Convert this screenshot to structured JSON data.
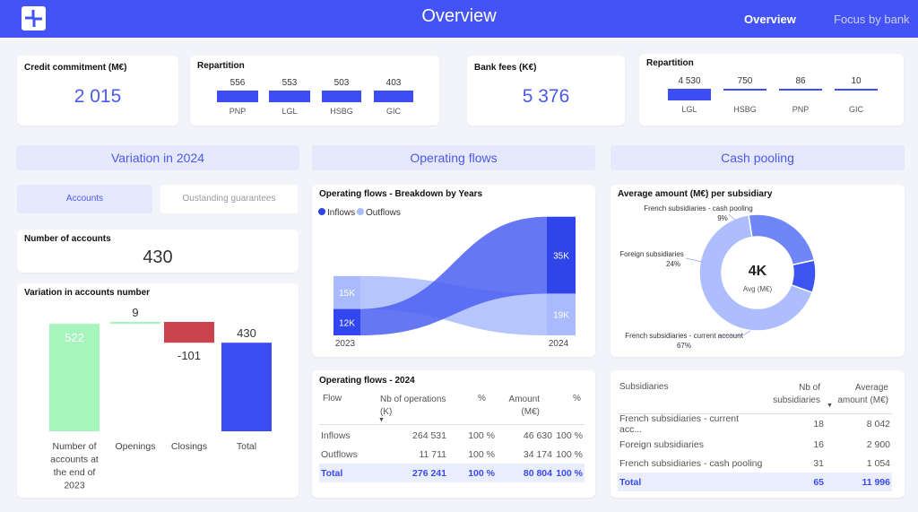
{
  "header": {
    "title": "Overview",
    "nav": [
      "Overview",
      "Focus by bank"
    ]
  },
  "kpi1": {
    "title": "Credit commitment (M€)",
    "value": "2 015"
  },
  "rep1": {
    "title": "Repartition",
    "items": [
      {
        "value": "556",
        "label": "PNP",
        "amount": 556
      },
      {
        "value": "553",
        "label": "LGL",
        "amount": 553
      },
      {
        "value": "503",
        "label": "HSBG",
        "amount": 503
      },
      {
        "value": "403",
        "label": "GIC",
        "amount": 403
      }
    ]
  },
  "kpi2": {
    "title": "Bank fees (K€)",
    "value": "5 376"
  },
  "rep2": {
    "title": "Repartition",
    "items": [
      {
        "value": "4 530",
        "label": "LGL",
        "amount": 4530
      },
      {
        "value": "750",
        "label": "HSBG",
        "amount": 750
      },
      {
        "value": "86",
        "label": "PNP",
        "amount": 86
      },
      {
        "value": "10",
        "label": "GIC",
        "amount": 10
      }
    ]
  },
  "sections": {
    "variation": "Variation in 2024",
    "operating": "Operating flows",
    "cash": "Cash pooling"
  },
  "tabs": {
    "accounts": "Accounts",
    "guarantees": "Oustanding guarantees"
  },
  "accounts": {
    "title": "Number of accounts",
    "value": "430"
  },
  "chart_data": [
    {
      "type": "waterfall",
      "title": "Variation in accounts number",
      "categories": [
        "Number of accounts at the end of 2023",
        "Openings",
        "Closings",
        "Total"
      ],
      "values": [
        522,
        9,
        -101,
        430
      ],
      "labels": [
        "522",
        "9",
        "-101",
        "430"
      ],
      "colors": [
        "#a6f5bd",
        "#a6f5bd",
        "#c8434d",
        "#3b4cf2"
      ],
      "ylim": [
        0,
        531
      ]
    },
    {
      "type": "ribbon",
      "title": "Operating flows - Breakdown by Years",
      "legend": [
        "Inflows",
        "Outflows"
      ],
      "categories": [
        "2023",
        "2024"
      ],
      "series": [
        {
          "name": "Inflows",
          "values": [
            12,
            35
          ],
          "labels": [
            "12K",
            "35K"
          ]
        },
        {
          "name": "Outflows",
          "values": [
            15,
            19
          ],
          "labels": [
            "15K",
            "19K"
          ]
        }
      ]
    },
    {
      "type": "pie",
      "title": "Average amount (M€) per subsidiary",
      "center_value": "4K",
      "center_label": "Avg (M€)",
      "slices": [
        {
          "label": "French subsidiaries - current account",
          "pct": "67%",
          "value": 67,
          "color": "#aebdfd"
        },
        {
          "label": "Foreign subsidiaries",
          "pct": "24%",
          "value": 24,
          "color": "#6f86f6"
        },
        {
          "label": "French subsidiaries - cash pooling",
          "pct": "9%",
          "value": 9,
          "color": "#3d55f0"
        }
      ]
    }
  ],
  "flows_table": {
    "title": "Operating flows - 2024",
    "headers": [
      "Flow",
      "Nb of operations (K)",
      "%",
      "Amount (M€)",
      "%"
    ],
    "rows": [
      [
        "Inflows",
        "264 531",
        "100 %",
        "46 630",
        "100 %"
      ],
      [
        "Outflows",
        "11 711",
        "100 %",
        "34 174",
        "100 %"
      ]
    ],
    "total": [
      "Total",
      "276 241",
      "100 %",
      "80 804",
      "100 %"
    ]
  },
  "subs_table": {
    "headers": [
      "Subsidiaries",
      "Nb of subsidiaries",
      "Average amount (M€)"
    ],
    "rows": [
      [
        "French subsidiaries - current acc...",
        "18",
        "8 042"
      ],
      [
        "Foreign subsidiaries",
        "16",
        "2 900"
      ],
      [
        "French subsidiaries - cash pooling",
        "31",
        "1 054"
      ]
    ],
    "total": [
      "Total",
      "65",
      "11 996"
    ]
  }
}
